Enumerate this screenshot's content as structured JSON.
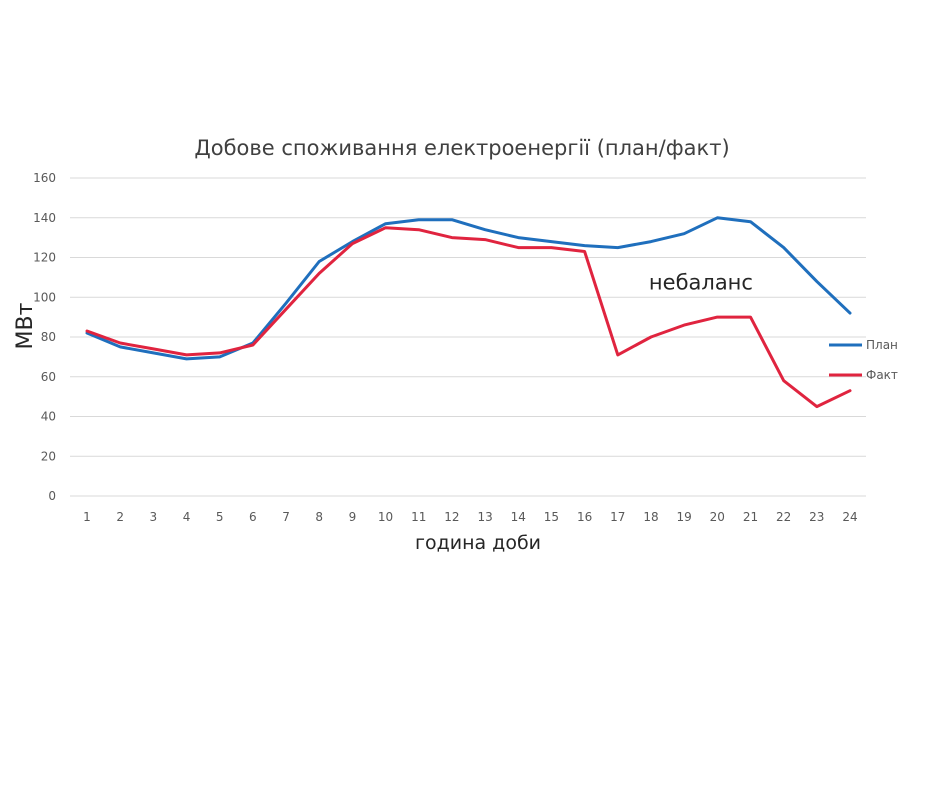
{
  "chart_data": {
    "type": "line",
    "title": "Добове споживання електроенергії (план/факт)",
    "xlabel": "година доби",
    "ylabel": "МВт",
    "ylim": [
      0,
      160
    ],
    "yticks": [
      0,
      20,
      40,
      60,
      80,
      100,
      120,
      140,
      160
    ],
    "grid": true,
    "legend_position": "right",
    "categories": [
      "1",
      "2",
      "3",
      "4",
      "5",
      "6",
      "7",
      "8",
      "9",
      "10",
      "11",
      "12",
      "13",
      "14",
      "15",
      "16",
      "17",
      "18",
      "19",
      "20",
      "21",
      "22",
      "23",
      "24"
    ],
    "series": [
      {
        "name": "План",
        "color": "#1f6fbd",
        "values": [
          82,
          75,
          72,
          69,
          70,
          77,
          97,
          118,
          128,
          137,
          139,
          139,
          134,
          130,
          128,
          126,
          125,
          128,
          132,
          140,
          138,
          125,
          108,
          92
        ]
      },
      {
        "name": "Факт",
        "color": "#e0243f",
        "values": [
          83,
          77,
          74,
          71,
          72,
          76,
          94,
          112,
          127,
          135,
          134,
          130,
          129,
          125,
          125,
          123,
          71,
          80,
          86,
          90,
          90,
          58,
          45,
          53
        ]
      }
    ],
    "annotations": [
      {
        "text": "небаланс",
        "x": "18",
        "y": 108
      }
    ]
  }
}
